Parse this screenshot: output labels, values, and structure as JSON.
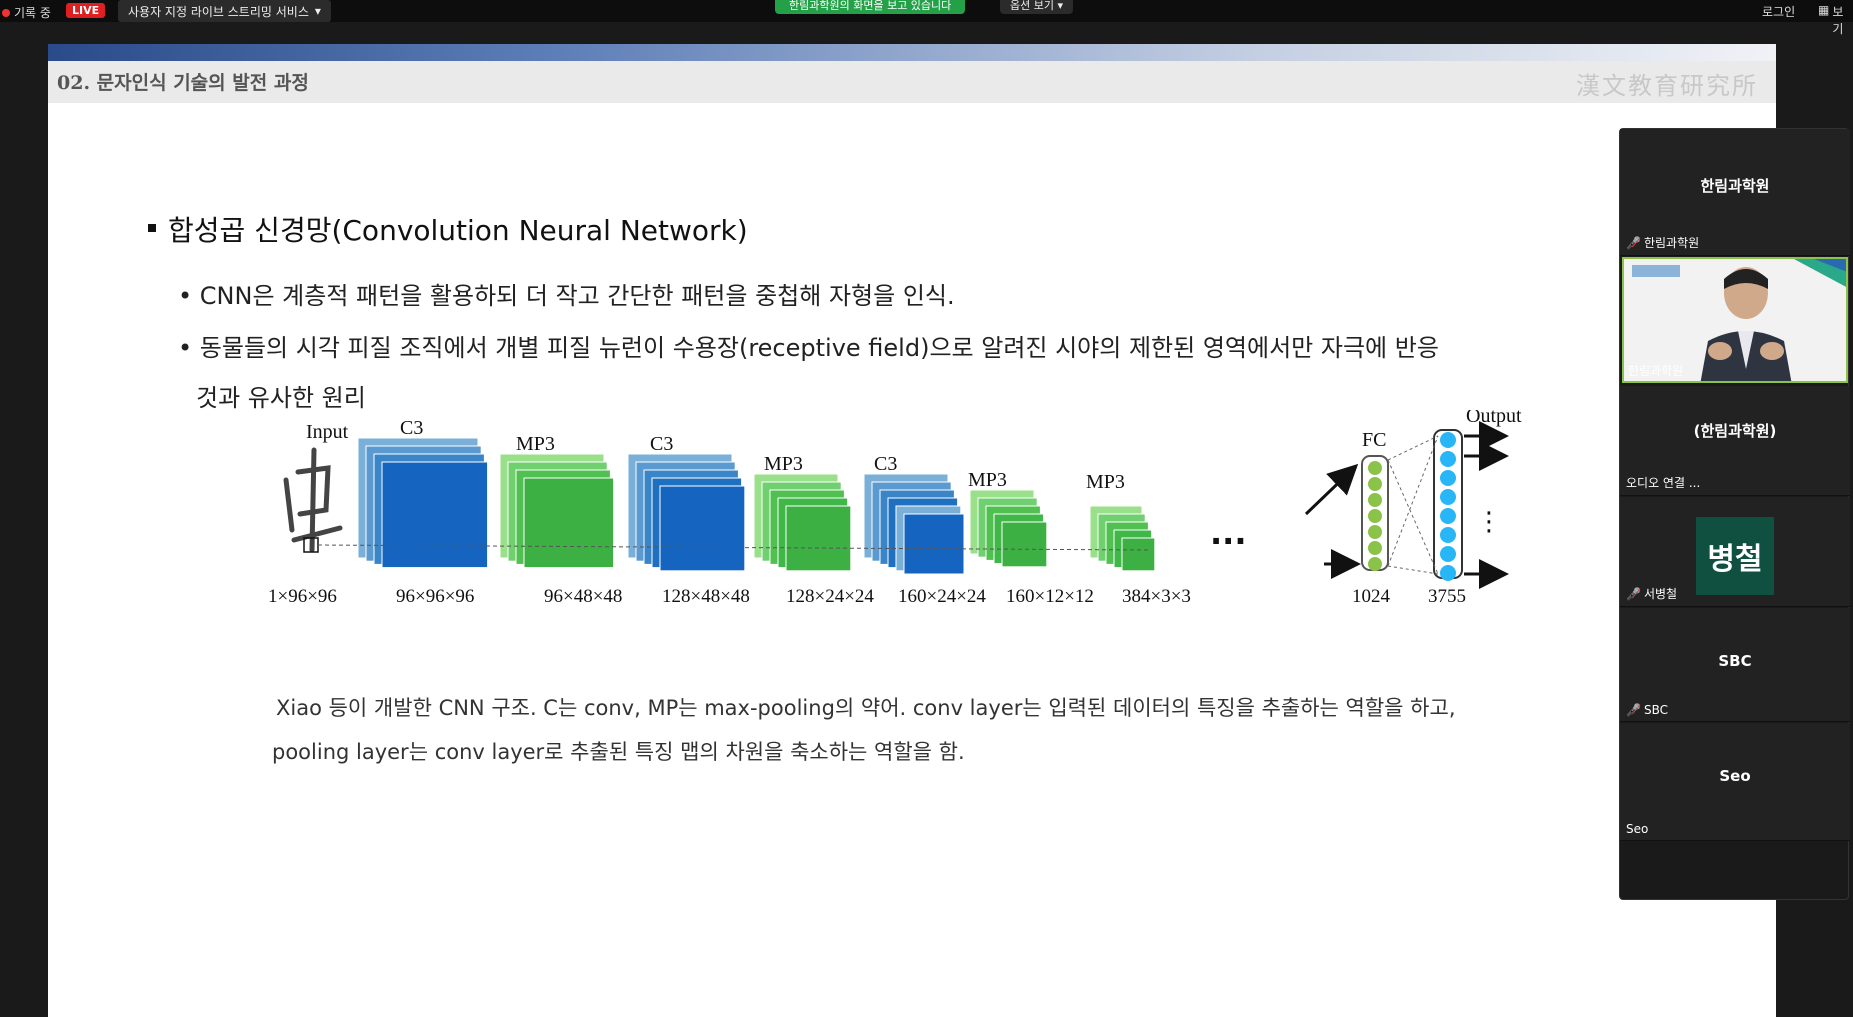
{
  "topbar": {
    "recording_label": "기록 중",
    "live_label": "LIVE",
    "stream_label": "사용자 지정 라이브 스트리밍 서비스",
    "share_banner": "한림과학원의 화면을 보고 있습니다",
    "view_options_label": "옵션 보기",
    "login_label": "로그인",
    "view_label": "보기"
  },
  "slide": {
    "section_title": "02. 문자인식 기술의 발전 과정",
    "watermark": "漢文教育研究所",
    "heading": "합성곱 신경망(Convolution Neural Network)",
    "point1": "CNN은 계층적 패턴을 활용하되 더 작고 간단한 패턴을 중첩해 자형을 인식.",
    "point2": "동물들의 시각 피질 조직에서 개별 피질 뉴런이 수용장(receptive field)으로 알려진 시야의 제한된 영역에서만 자극에 반응",
    "point2_cont": "것과 유사한 원리",
    "caption1": "Xiao 등이 개발한 CNN 구조. C는 conv, MP는 max-pooling의 약어. conv layer는 입력된 데이터의 특징을 추출하는 역할을 하고,",
    "caption2": "pooling layer는 conv layer로 추출된 특징 맵의 차원을 축소하는 역할을 함.",
    "diagram": {
      "input_label": "Input",
      "fc_label": "FC",
      "output_label": "Output",
      "dots": "...",
      "layers": [
        {
          "label": "C3",
          "dims": "96×96×96",
          "color": "#1565c0"
        },
        {
          "label": "MP3",
          "dims": "96×48×48",
          "color": "#3cb043"
        },
        {
          "label": "C3",
          "dims": "128×48×48",
          "color": "#1565c0"
        },
        {
          "label": "MP3",
          "dims": "128×24×24",
          "color": "#3cb043"
        },
        {
          "label": "C3",
          "dims": "160×24×24",
          "color": "#1565c0"
        },
        {
          "label": "MP3",
          "dims": "160×12×12",
          "color": "#3cb043"
        },
        {
          "label": "MP3",
          "dims": "384×3×3",
          "color": "#3cb043"
        }
      ],
      "input_dims": "1×96×96",
      "fc_dims": "1024",
      "output_dims": "3755"
    }
  },
  "participants": [
    {
      "center": "한림과학원",
      "name": "한림과학원",
      "muted": true
    },
    {
      "center": "",
      "name": "한림과학원",
      "muted": false,
      "video": true
    },
    {
      "center": "(한림과학원)",
      "name": "오디오 연결 ...",
      "muted": false
    },
    {
      "center": "병철",
      "name": "서병철",
      "muted": true,
      "avatar": true
    },
    {
      "center": "SBC",
      "name": "SBC",
      "muted": true
    },
    {
      "center": "Seo",
      "name": "Seo",
      "muted": false
    }
  ],
  "colors": {
    "conv": "#1565c0",
    "pool": "#3cb043",
    "fc_node": "#8bc34a",
    "output_node": "#29b6f6",
    "live": "#e02020",
    "share_banner": "#24a148"
  }
}
